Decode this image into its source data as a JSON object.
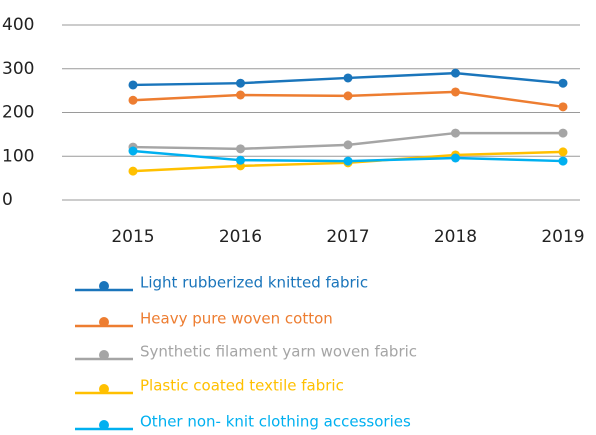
{
  "chart_data": {
    "type": "line",
    "categories": [
      "2015",
      "2016",
      "2017",
      "2018",
      "2019"
    ],
    "series": [
      {
        "name": "Light rubberized knitted fabric",
        "color": "#1a75bb",
        "values": [
          263,
          267,
          279,
          290,
          267
        ]
      },
      {
        "name": "Heavy pure woven cotton",
        "color": "#ed7d31",
        "values": [
          228,
          240,
          238,
          247,
          213
        ]
      },
      {
        "name": "Synthetic filament yarn woven fabric",
        "color": "#a5a5a5",
        "values": [
          121,
          117,
          126,
          153,
          153
        ]
      },
      {
        "name": "Plastic coated textile fabric",
        "color": "#ffc000",
        "values": [
          66,
          78,
          85,
          103,
          110
        ]
      },
      {
        "name": "Other non- knit clothing accessories",
        "color": "#00b0f0",
        "values": [
          112,
          91,
          89,
          96,
          89
        ]
      }
    ],
    "ylim": [
      0,
      400
    ],
    "yticks": [
      0,
      100,
      200,
      300,
      400
    ],
    "grid": true,
    "legend": "bottom"
  }
}
